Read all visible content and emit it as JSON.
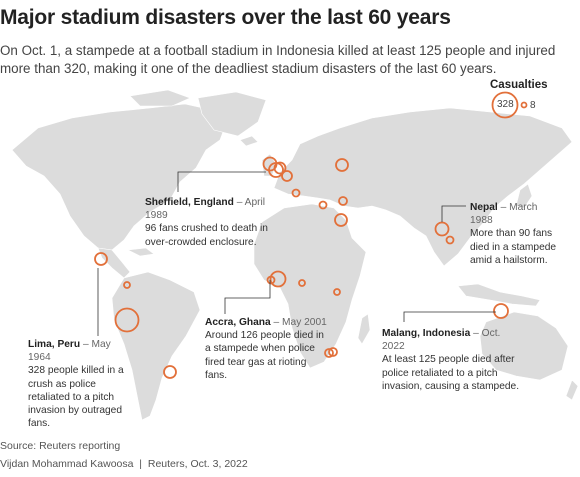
{
  "title": "Major stadium disasters over the last 60 years",
  "subtitle": "On Oct. 1, a stampede at a football stadium in Indonesia killed at least 125 people and injured more than 320, making it one of the deadliest stadium disasters of the last 60 years.",
  "legend": {
    "title": "Casualties",
    "max_value": 328,
    "min_value": 8,
    "max_label": "328",
    "min_label": "8"
  },
  "accent_color": "#e2703a",
  "land_color": "#dcdcdc",
  "annotations": [
    {
      "id": "sheffield",
      "place": "Sheffield, England",
      "date": "April 1989",
      "text": "96 fans crushed to death in over-crowded enclosure."
    },
    {
      "id": "nepal",
      "place": "Nepal",
      "date": "March 1988",
      "text": "More than 90 fans died in a stampede amid a hailstorm."
    },
    {
      "id": "lima",
      "place": "Lima, Peru",
      "date": "May 1964",
      "text": "328 people killed in a crush as police retaliated to a pitch invasion by outraged fans."
    },
    {
      "id": "accra",
      "place": "Accra, Ghana",
      "date": "May 2001",
      "text": "Around 126 people died in a stampede when police fired tear gas at rioting fans."
    },
    {
      "id": "malang",
      "place": "Malang, Indonesia",
      "date": "Oct. 2022",
      "text": "At least 125 people died after police retaliated to a pitch invasion, causing a stampede."
    }
  ],
  "footer": {
    "source": "Source: Reuters reporting",
    "credit": "Vijdan Mohammad Kawoosa",
    "outlet": "Reuters, Oct. 3, 2022"
  }
}
